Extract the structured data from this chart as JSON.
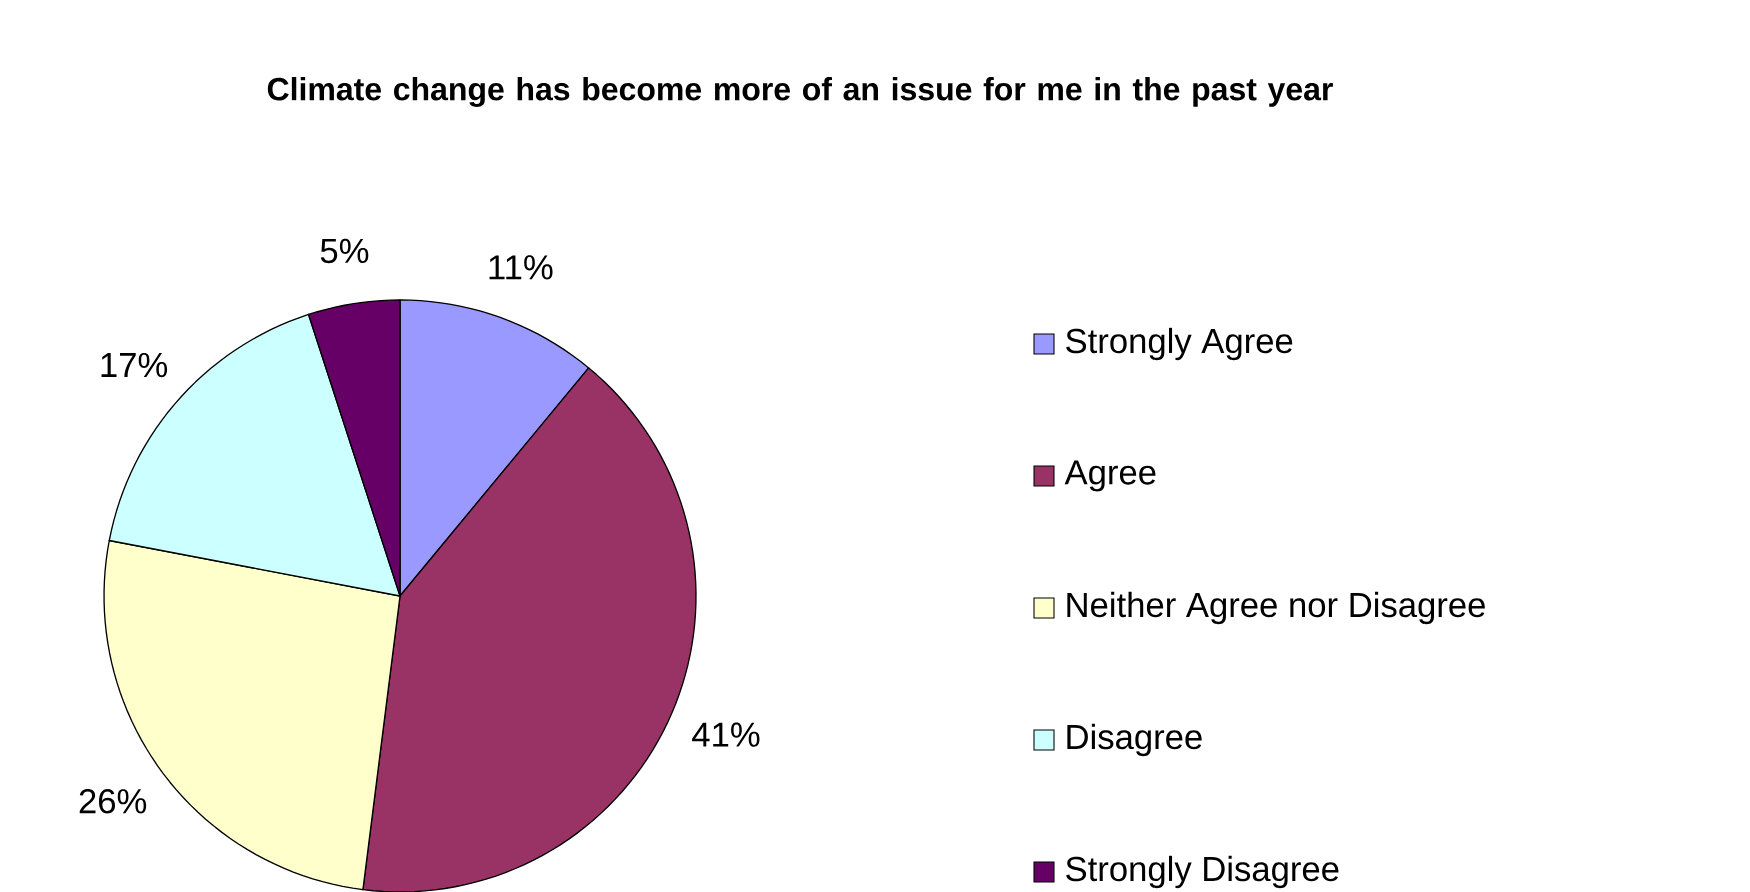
{
  "chart_data": {
    "type": "pie",
    "title": "Climate change has become more of an issue for me in the past year",
    "categories": [
      "Strongly Agree",
      "Agree",
      "Neither Agree nor Disagree",
      "Disagree",
      "Strongly Disagree"
    ],
    "values": [
      11,
      41,
      26,
      17,
      5
    ],
    "value_labels": [
      "11%",
      "41%",
      "26%",
      "17%",
      "5%"
    ],
    "colors": [
      "#9999ff",
      "#993366",
      "#ffffcc",
      "#ccffff",
      "#660066"
    ],
    "legend": "right"
  }
}
